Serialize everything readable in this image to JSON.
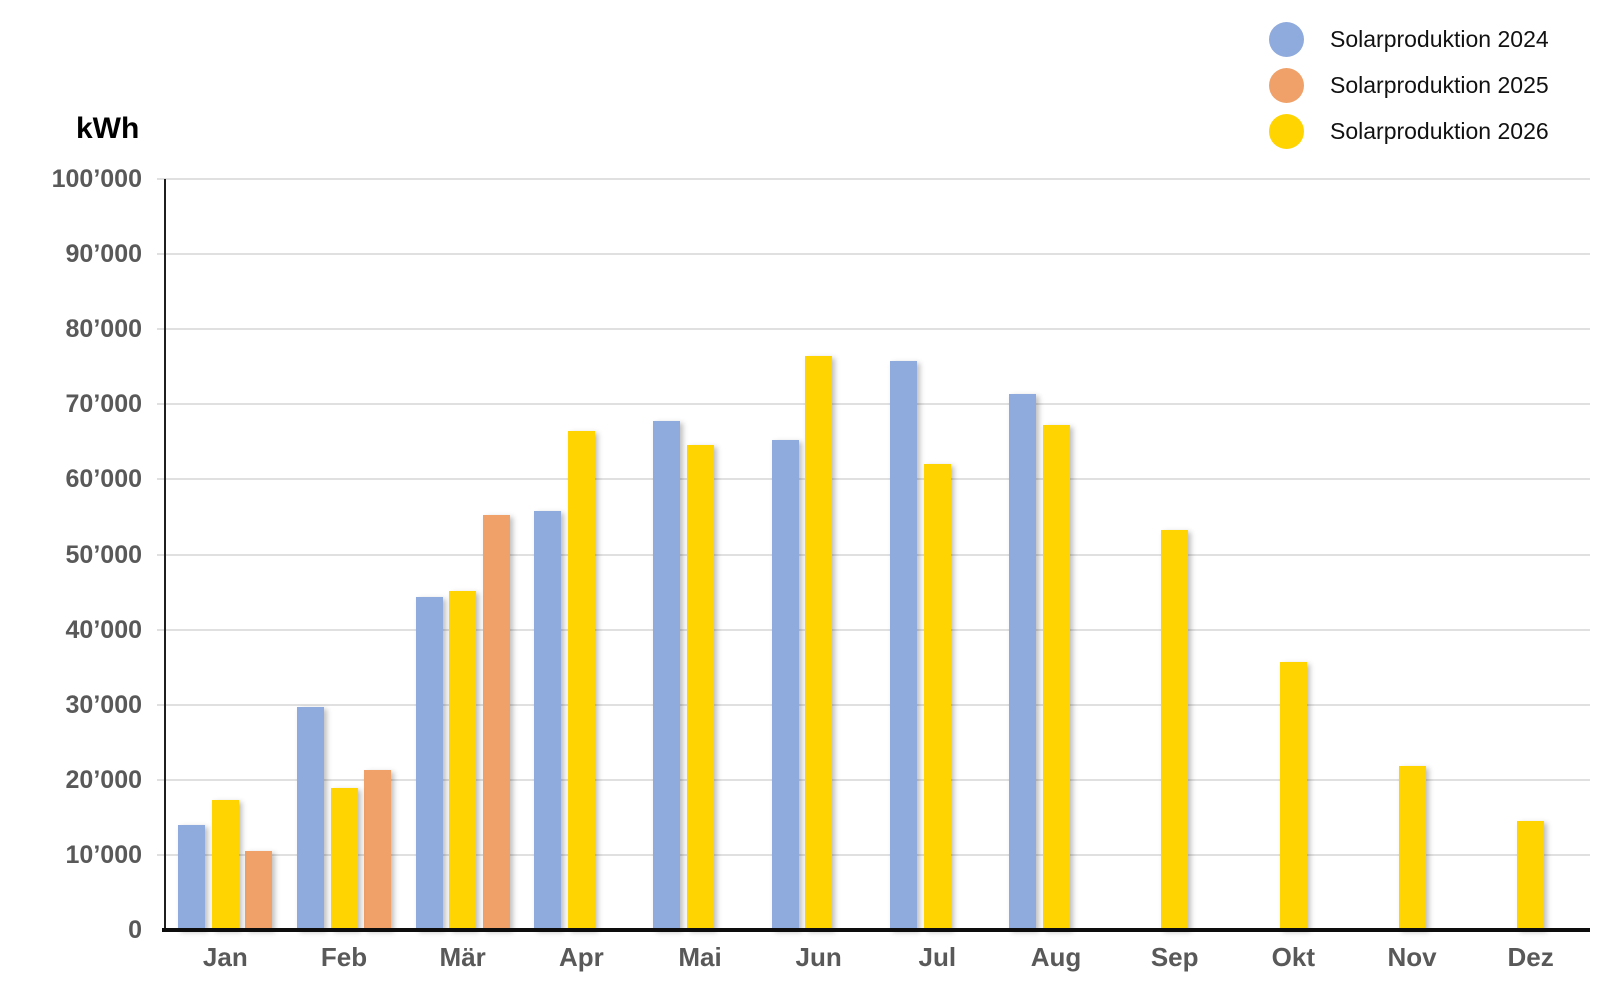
{
  "chart_data": {
    "type": "bar",
    "title": "",
    "y_axis_title": "kWh",
    "ylim": [
      0,
      100000
    ],
    "y_tick_step": 10000,
    "y_tick_labels": [
      "0",
      "10’000",
      "20’000",
      "30’000",
      "40’000",
      "50’000",
      "60’000",
      "70’000",
      "80’000",
      "90’000",
      "100’000"
    ],
    "categories": [
      "Jan",
      "Feb",
      "Mär",
      "Apr",
      "Mai",
      "Jun",
      "Jul",
      "Aug",
      "Sep",
      "Okt",
      "Nov",
      "Dez"
    ],
    "grid": "horizontal",
    "legend_position": "top-right",
    "axis_color": "#1f1f1f",
    "gridline_color": "#E0E0E0",
    "tick_label_color": "#595959",
    "series": [
      {
        "name": "Solarproduktion 2024",
        "color": "#8FAADC",
        "bar_slot": 0,
        "values": [
          14000,
          29700,
          44300,
          55800,
          67800,
          65200,
          75800,
          71400,
          null,
          null,
          null,
          null
        ]
      },
      {
        "name": "Solarproduktion 2025",
        "color": "#F0A169",
        "bar_slot": 2,
        "values": [
          10500,
          21300,
          55300,
          null,
          null,
          null,
          null,
          null,
          null,
          null,
          null,
          null
        ]
      },
      {
        "name": "Solarproduktion 2026",
        "color": "#FFD400",
        "bar_slot": 1,
        "values": [
          17300,
          18900,
          45200,
          66400,
          64600,
          76400,
          62000,
          67200,
          53200,
          35700,
          21900,
          14500
        ]
      }
    ]
  }
}
